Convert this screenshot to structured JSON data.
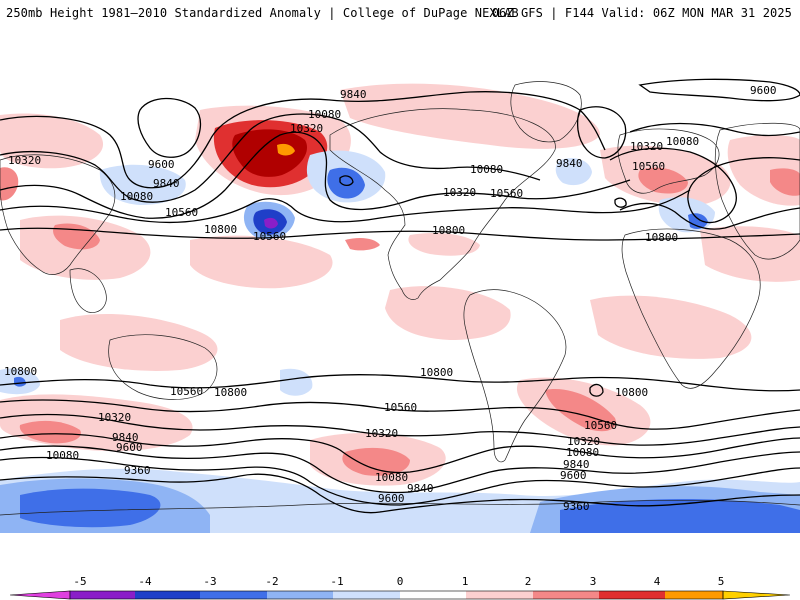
{
  "header": {
    "title": "250mb Height 1981–2010 Standardized Anomaly | College of DuPage NEXLAB",
    "run_info": "06Z GFS | F144 Valid: 06Z MON MAR 31 2025"
  },
  "map": {
    "variable": "250mb Height",
    "units_contour": "m",
    "contour_labels": [
      {
        "id": "c9600-w",
        "text": "9600"
      },
      {
        "id": "c9840-nw",
        "text": "9840"
      },
      {
        "id": "c10320-w",
        "text": "10320"
      },
      {
        "id": "c10080-w",
        "text": "10080"
      },
      {
        "id": "c10560-w",
        "text": "10560"
      },
      {
        "id": "c10800-w",
        "text": "10800"
      },
      {
        "id": "c9840-n",
        "text": "9840"
      },
      {
        "id": "c10080-n",
        "text": "10080"
      },
      {
        "id": "c10320-n",
        "text": "10320"
      },
      {
        "id": "c10560-n",
        "text": "10560"
      },
      {
        "id": "c10080-na",
        "text": "10080"
      },
      {
        "id": "c10320-na",
        "text": "10320"
      },
      {
        "id": "c10560-na",
        "text": "10560"
      },
      {
        "id": "c10800-na",
        "text": "10800"
      },
      {
        "id": "c9840-atl",
        "text": "9840"
      },
      {
        "id": "c10320-eu",
        "text": "10320"
      },
      {
        "id": "c10080-eu",
        "text": "10080"
      },
      {
        "id": "c10560-eu",
        "text": "10560"
      },
      {
        "id": "c10800-af",
        "text": "10800"
      },
      {
        "id": "c9600-ne",
        "text": "9600"
      },
      {
        "id": "s10800-w",
        "text": "10800"
      },
      {
        "id": "s10560-w",
        "text": "10560"
      },
      {
        "id": "s10800-wc",
        "text": "10800"
      },
      {
        "id": "s10320-w",
        "text": "10320"
      },
      {
        "id": "s9840-w",
        "text": "9840"
      },
      {
        "id": "s9600-w",
        "text": "9600"
      },
      {
        "id": "s10080-w",
        "text": "10080"
      },
      {
        "id": "s9360-w",
        "text": "9360"
      },
      {
        "id": "s10800-c",
        "text": "10800"
      },
      {
        "id": "s10560-c",
        "text": "10560"
      },
      {
        "id": "s10320-c",
        "text": "10320"
      },
      {
        "id": "s10080-c",
        "text": "10080"
      },
      {
        "id": "s9840-c",
        "text": "9840"
      },
      {
        "id": "s9600-c",
        "text": "9600"
      },
      {
        "id": "s10800-e",
        "text": "10800"
      },
      {
        "id": "s10560-e",
        "text": "10560"
      },
      {
        "id": "s10320-e",
        "text": "10320"
      },
      {
        "id": "s10080-e",
        "text": "10080"
      },
      {
        "id": "s9840-e",
        "text": "9840"
      },
      {
        "id": "s9600-e",
        "text": "9600"
      },
      {
        "id": "s9360-e",
        "text": "9360"
      }
    ]
  },
  "colorbar": {
    "ticks": [
      "-5",
      "-4",
      "-3",
      "-2",
      "-1",
      "0",
      "1",
      "2",
      "3",
      "4",
      "5"
    ],
    "colors": [
      "#e040e0",
      "#8a1ec8",
      "#1f3fc8",
      "#3f6fe8",
      "#8fb4f4",
      "#cfe0fb",
      "#ffffff",
      "#fbd0d0",
      "#f48888",
      "#e03030",
      "#b00000",
      "#ff9a00",
      "#ffd000"
    ]
  }
}
